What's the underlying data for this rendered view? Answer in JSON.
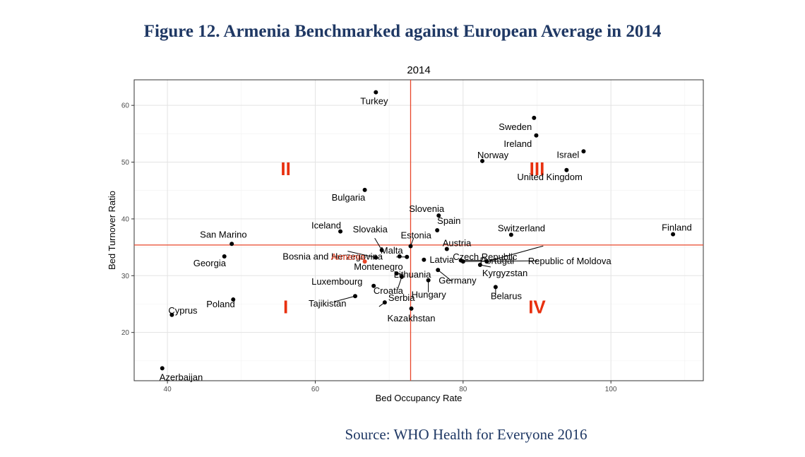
{
  "figure": {
    "title": "Figure 12. Armenia Benchmarked against European Average in 2014",
    "source": "Source: WHO Health for Everyone 2016"
  },
  "colors": {
    "reference": "#e8472a",
    "highlight": "#e8472a",
    "quadrant": "#e8300f",
    "point": "#000000"
  },
  "chart_data": {
    "type": "scatter",
    "title": "2014",
    "xlabel": "Bed Occupancy Rate",
    "ylabel": "Bed Turnover Ratio",
    "xlim": [
      35.5,
      112.5
    ],
    "ylim": [
      11.5,
      64.5
    ],
    "xticks": [
      40,
      60,
      80,
      100
    ],
    "yticks": [
      20,
      30,
      40,
      50,
      60
    ],
    "grid": true,
    "reference_lines": {
      "x": 72.9,
      "y": 35.4
    },
    "quadrant_labels": [
      {
        "label": "I",
        "x": 56,
        "y": 24.5
      },
      {
        "label": "II",
        "x": 56,
        "y": 48.8
      },
      {
        "label": "III",
        "x": 90,
        "y": 48.8
      },
      {
        "label": "IV",
        "x": 90,
        "y": 24.5
      }
    ],
    "points": [
      {
        "name": "Turkey",
        "x": 68.2,
        "y": 62.3
      },
      {
        "name": "Sweden",
        "x": 89.6,
        "y": 57.8
      },
      {
        "name": "Ireland",
        "x": 89.9,
        "y": 54.7
      },
      {
        "name": "Israel",
        "x": 96.3,
        "y": 51.9
      },
      {
        "name": "Norway",
        "x": 82.6,
        "y": 50.2
      },
      {
        "name": "United Kingdom",
        "x": 94.0,
        "y": 48.6
      },
      {
        "name": "Bulgaria",
        "x": 66.7,
        "y": 45.1
      },
      {
        "name": "Slovenia",
        "x": 76.7,
        "y": 40.6
      },
      {
        "name": "Spain",
        "x": 76.5,
        "y": 38.0
      },
      {
        "name": "Iceland",
        "x": 63.4,
        "y": 37.8
      },
      {
        "name": "Switzerland",
        "x": 86.5,
        "y": 37.2
      },
      {
        "name": "Finland",
        "x": 108.4,
        "y": 37.3
      },
      {
        "name": "San Marino",
        "x": 48.7,
        "y": 35.6
      },
      {
        "name": "Estonia",
        "x": 72.9,
        "y": 35.2
      },
      {
        "name": "Slovakia",
        "x": 69.0,
        "y": 34.5
      },
      {
        "name": "Austria",
        "x": 77.8,
        "y": 34.7
      },
      {
        "name": "Bosnia and Herzegovina",
        "x": 68.2,
        "y": 33.2
      },
      {
        "name": "Georgia",
        "x": 47.7,
        "y": 33.4
      },
      {
        "name": "Malta",
        "x": 71.4,
        "y": 33.4
      },
      {
        "name": "Montenegro",
        "x": 72.4,
        "y": 33.3
      },
      {
        "name": "Latvia",
        "x": 74.7,
        "y": 32.8
      },
      {
        "name": "Portugal",
        "x": 79.7,
        "y": 32.7
      },
      {
        "name": "Czech Republic",
        "x": 83.2,
        "y": 32.5
      },
      {
        "name": "Republic of Moldova",
        "x": 80.0,
        "y": 32.5
      },
      {
        "name": "Armenia",
        "x": 66.7,
        "y": 32.5,
        "highlight": true
      },
      {
        "name": "Kyrgyzstan",
        "x": 82.3,
        "y": 31.9
      },
      {
        "name": "Lithuania",
        "x": 71.0,
        "y": 30.4
      },
      {
        "name": "Germany",
        "x": 76.6,
        "y": 31.0
      },
      {
        "name": "Croatia",
        "x": 71.7,
        "y": 29.8
      },
      {
        "name": "Hungary",
        "x": 75.3,
        "y": 29.2
      },
      {
        "name": "Luxembourg",
        "x": 67.9,
        "y": 28.2
      },
      {
        "name": "Belarus",
        "x": 84.4,
        "y": 28.0
      },
      {
        "name": "Serbia",
        "x": 69.4,
        "y": 25.3
      },
      {
        "name": "Tajikistan",
        "x": 65.4,
        "y": 26.4
      },
      {
        "name": "Poland",
        "x": 48.9,
        "y": 25.8
      },
      {
        "name": "Kazakhstan",
        "x": 73.0,
        "y": 24.2
      },
      {
        "name": "Cyprus",
        "x": 40.6,
        "y": 23.1
      },
      {
        "name": "Azerbaijan",
        "x": 39.3,
        "y": 13.7
      }
    ]
  }
}
